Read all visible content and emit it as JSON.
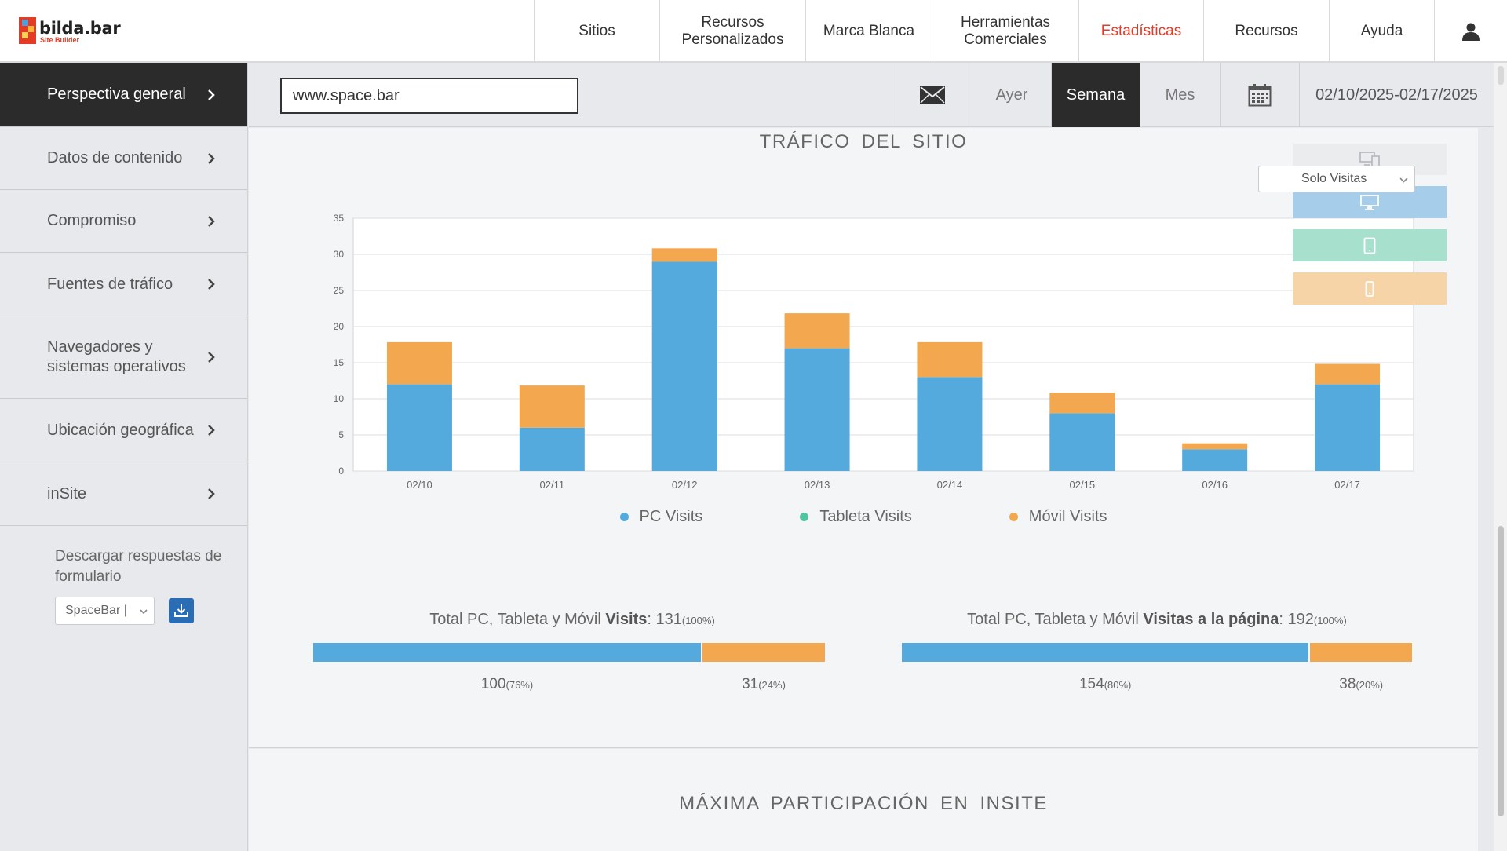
{
  "brand": {
    "name": "bilda.bar",
    "sub": "Site Builder"
  },
  "nav": {
    "items": [
      {
        "label": "Sitios"
      },
      {
        "label": "Recursos Personalizados"
      },
      {
        "label": "Marca Blanca"
      },
      {
        "label": "Herramientas Comerciales"
      },
      {
        "label": "Estadísticas"
      },
      {
        "label": "Recursos"
      },
      {
        "label": "Ayuda"
      }
    ],
    "active": "Estadísticas",
    "user_icon": "user-icon"
  },
  "sidebar": {
    "items": [
      {
        "label": "Perspectiva general"
      },
      {
        "label": "Datos de contenido"
      },
      {
        "label": "Compromiso"
      },
      {
        "label": "Fuentes de tráfico"
      },
      {
        "label": "Navegadores y sistemas operativos"
      },
      {
        "label": "Ubicación geográfica"
      },
      {
        "label": "inSite"
      }
    ],
    "download": {
      "title": "Descargar respuestas de formulario",
      "select_value": "SpaceBar |",
      "icon": "download-icon"
    }
  },
  "toolbar": {
    "site_value": "www.space.bar",
    "periods": {
      "yesterday": "Ayer",
      "week": "Semana",
      "month": "Mes"
    },
    "active_period": "Semana",
    "date_range": "02/10/2025-02/17/2025",
    "icons": {
      "mail": "envelope-icon",
      "calendar": "calendar-icon"
    }
  },
  "main": {
    "title": "TRÁFICO DEL SITIO",
    "view_select": "Solo Visitas",
    "section_two_title": "MÁXIMA PARTICIPACIÓN EN INSITE"
  },
  "chart_data": {
    "type": "bar",
    "stacked": true,
    "title": "TRÁFICO DEL SITIO",
    "categories": [
      "02/10",
      "02/11",
      "02/12",
      "02/13",
      "02/14",
      "02/15",
      "02/16",
      "02/17"
    ],
    "series": [
      {
        "name": "PC Visits",
        "color": "#54a9dd",
        "values": [
          12,
          6,
          29,
          17,
          13,
          8,
          3,
          12
        ]
      },
      {
        "name": "Tableta Visits",
        "color": "#4fc6a1",
        "values": [
          0,
          0,
          0,
          0,
          0,
          0,
          0,
          0
        ]
      },
      {
        "name": "Móvil Visits",
        "color": "#f3a84f",
        "values": [
          6,
          6,
          2,
          5,
          5,
          3,
          1,
          3
        ]
      }
    ],
    "yticks": [
      0,
      5,
      10,
      15,
      20,
      25,
      30,
      35
    ],
    "ylim": [
      0,
      35
    ],
    "grid": true,
    "legend": "bottom-center"
  },
  "totals": {
    "visits": {
      "prefix": "Total PC, Tableta y Móvil ",
      "metric": "Visits",
      "total": "131",
      "total_pct": "(100%)",
      "pc": "100",
      "pc_pct": "(76%)",
      "pc_share": 0.76,
      "mobile": "31",
      "mobile_pct": "(24%)",
      "mobile_share": 0.24
    },
    "pageviews": {
      "prefix": "Total PC, Tableta y Móvil ",
      "metric": "Visitas a la página",
      "total": "192",
      "total_pct": "(100%)",
      "pc": "154",
      "pc_pct": "(80%)",
      "pc_share": 0.8,
      "mobile": "38",
      "mobile_pct": "(20%)",
      "mobile_share": 0.2
    }
  },
  "colors": {
    "accent": "#e53a25",
    "pc": "#54a9dd",
    "tablet": "#4fc6a1",
    "mobile": "#f3a84f",
    "dark": "#2b2b2b"
  }
}
